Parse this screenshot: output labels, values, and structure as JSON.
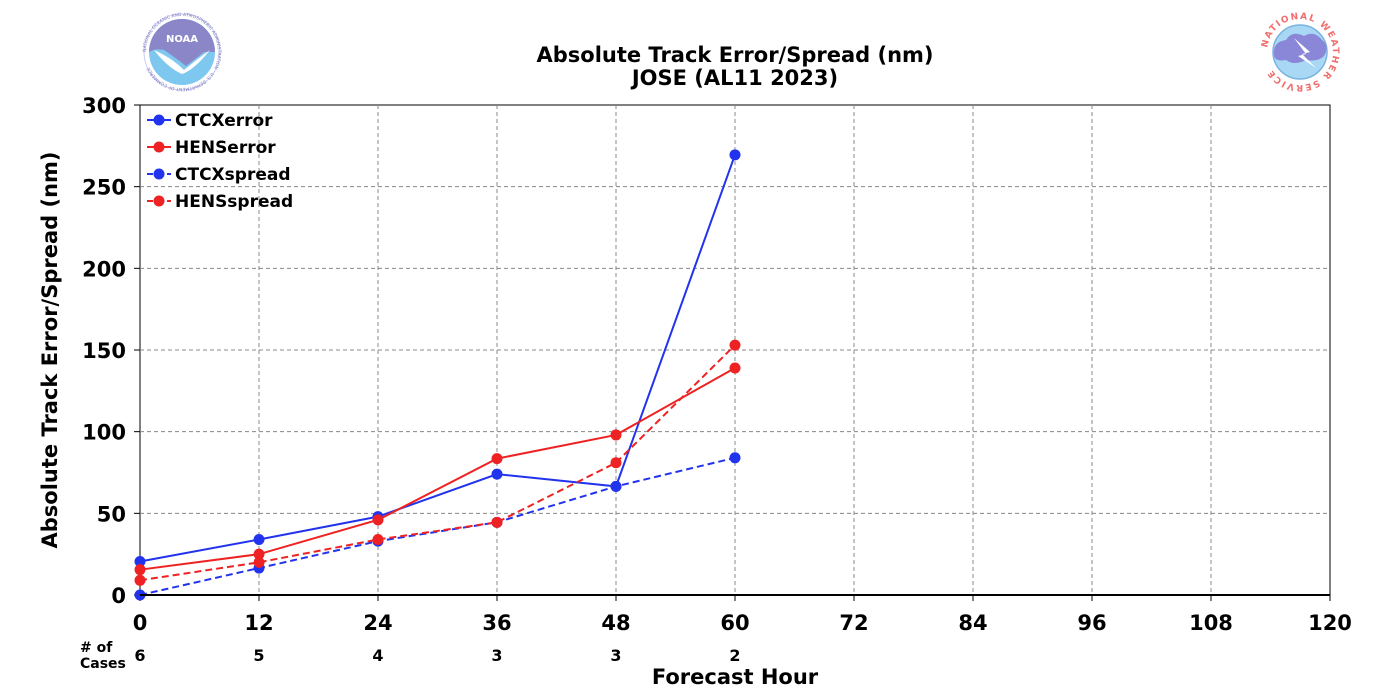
{
  "logos": {
    "left_text": "NOAA",
    "left_ring_text": "NATIONAL OCEANIC AND ATMOSPHERIC ADMINISTRATION · U.S. DEPARTMENT OF COMMERCE",
    "right_ring_text": "NATIONAL WEATHER SERVICE"
  },
  "cases_label_line1": "# of",
  "cases_label_line2": "Cases",
  "cases": [
    6,
    5,
    4,
    3,
    3,
    2
  ],
  "chart_data": {
    "type": "line",
    "title": "Absolute Track Error/Spread (nm)",
    "subtitle": "JOSE (AL11 2023)",
    "xlabel": "Forecast Hour",
    "ylabel": "Absolute Track Error/Spread (nm)",
    "xlim": [
      0,
      120
    ],
    "ylim": [
      0,
      300
    ],
    "xticks": [
      0,
      12,
      24,
      36,
      48,
      60,
      72,
      84,
      96,
      108,
      120
    ],
    "yticks": [
      0,
      50,
      100,
      150,
      200,
      250,
      300
    ],
    "grid": true,
    "legend_position": "top-left",
    "x": [
      0,
      12,
      24,
      36,
      48,
      60
    ],
    "series": [
      {
        "name": "CTCXerror",
        "color": "#2233ee",
        "dash": false,
        "values": [
          20.5,
          34,
          48,
          74,
          66.5,
          269.5
        ]
      },
      {
        "name": "HENSerror",
        "color": "#ee2222",
        "dash": false,
        "values": [
          15.5,
          25,
          46,
          83.5,
          98,
          139
        ]
      },
      {
        "name": "CTCXspread",
        "color": "#2233ee",
        "dash": true,
        "values": [
          0,
          16.5,
          33,
          44.5,
          66.5,
          84
        ]
      },
      {
        "name": "HENSspread",
        "color": "#ee2222",
        "dash": true,
        "values": [
          9,
          20,
          34,
          44.5,
          81,
          153
        ]
      }
    ]
  }
}
